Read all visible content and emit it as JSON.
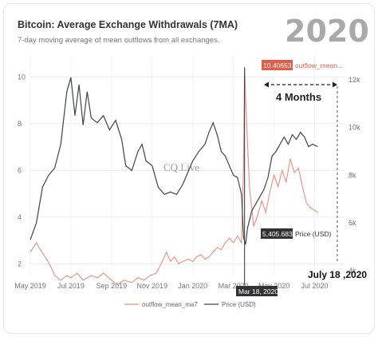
{
  "header": {
    "title": "Bitcoin: Average Exchange Withdrawals (7MA)",
    "subtitle": "7-day moving average of mean outflows from all exchanges.",
    "year_overlay": "2020"
  },
  "annotations": {
    "duration_label": "4 Months",
    "end_date_label": "July 18 ,2020",
    "watermark": "CQ.Live",
    "peak_value_label": "10.40653",
    "peak_series_label": "outflow_mean...",
    "price_value_label": "5,405.683",
    "price_series_label": "Price (USD)",
    "date_badge": "Mar 18, 2020"
  },
  "colors": {
    "outflow": "#ef8d7c",
    "price": "#3f4449",
    "peak_badge": "#e25c48",
    "badge_dark": "#2f3336"
  },
  "chart_data": {
    "type": "line",
    "title": "Bitcoin: Average Exchange Withdrawals (7MA)",
    "subtitle": "7-day moving average of mean outflows from all exchanges.",
    "x_ticks": [
      "May 2019",
      "Jul 2019",
      "Sep 2019",
      "Nov 2019",
      "Jan 2020",
      "Mar 2020",
      "May 2020",
      "Jul 2020"
    ],
    "y_left_ticks": [
      2,
      4,
      6,
      8,
      10
    ],
    "y_left_range": [
      1.5,
      10.9
    ],
    "y_right_ticks": [
      "4k",
      "6k",
      "8k",
      "10k",
      "12k"
    ],
    "y_right_range": [
      3800,
      13000
    ],
    "x_range_months": [
      0,
      15
    ],
    "legend": [
      "outflow_mean_ma7",
      "Price (USD)"
    ],
    "legend_position": "bottom",
    "grid": true,
    "series": [
      {
        "name": "outflow_mean_ma7",
        "axis": "left",
        "points": [
          [
            0.0,
            2.5
          ],
          [
            0.3,
            2.9
          ],
          [
            0.5,
            2.6
          ],
          [
            0.8,
            2.2
          ],
          [
            1.0,
            1.9
          ],
          [
            1.2,
            1.5
          ],
          [
            1.5,
            1.3
          ],
          [
            1.8,
            1.5
          ],
          [
            2.0,
            1.4
          ],
          [
            2.3,
            1.6
          ],
          [
            2.6,
            1.3
          ],
          [
            3.0,
            1.5
          ],
          [
            3.3,
            1.4
          ],
          [
            3.6,
            1.6
          ],
          [
            4.0,
            1.3
          ],
          [
            4.3,
            1.1
          ],
          [
            4.6,
            1.3
          ],
          [
            5.0,
            1.2
          ],
          [
            5.3,
            1.4
          ],
          [
            5.6,
            1.3
          ],
          [
            5.9,
            1.5
          ],
          [
            6.2,
            1.6
          ],
          [
            6.5,
            2.1
          ],
          [
            6.7,
            2.5
          ],
          [
            6.9,
            2.1
          ],
          [
            7.1,
            2.3
          ],
          [
            7.3,
            2.0
          ],
          [
            7.5,
            2.1
          ],
          [
            7.8,
            2.2
          ],
          [
            8.0,
            2.1
          ],
          [
            8.2,
            2.3
          ],
          [
            8.4,
            2.4
          ],
          [
            8.6,
            2.2
          ],
          [
            8.8,
            2.3
          ],
          [
            9.0,
            2.5
          ],
          [
            9.2,
            2.7
          ],
          [
            9.4,
            2.6
          ],
          [
            9.6,
            2.9
          ],
          [
            9.8,
            3.1
          ],
          [
            10.0,
            2.9
          ],
          [
            10.2,
            3.2
          ],
          [
            10.4,
            2.9
          ],
          [
            10.5,
            6.2
          ],
          [
            10.55,
            10.4
          ],
          [
            10.6,
            9.2
          ],
          [
            10.7,
            7.1
          ],
          [
            10.8,
            5.2
          ],
          [
            10.9,
            4.4
          ],
          [
            11.0,
            3.6
          ],
          [
            11.2,
            4.1
          ],
          [
            11.4,
            4.7
          ],
          [
            11.6,
            4.2
          ],
          [
            11.8,
            5.1
          ],
          [
            12.0,
            5.8
          ],
          [
            12.2,
            5.3
          ],
          [
            12.4,
            6.0
          ],
          [
            12.6,
            5.5
          ],
          [
            12.8,
            6.5
          ],
          [
            13.0,
            5.9
          ],
          [
            13.2,
            6.1
          ],
          [
            13.4,
            5.3
          ],
          [
            13.6,
            4.6
          ],
          [
            13.8,
            4.4
          ],
          [
            14.0,
            4.3
          ],
          [
            14.15,
            4.2
          ]
        ]
      },
      {
        "name": "Price (USD)",
        "axis": "right",
        "points": [
          [
            0.0,
            5300
          ],
          [
            0.3,
            6000
          ],
          [
            0.6,
            7500
          ],
          [
            0.9,
            8000
          ],
          [
            1.2,
            8300
          ],
          [
            1.5,
            9300
          ],
          [
            1.8,
            11500
          ],
          [
            2.0,
            12100
          ],
          [
            2.2,
            10500
          ],
          [
            2.4,
            11800
          ],
          [
            2.6,
            10100
          ],
          [
            2.8,
            11500
          ],
          [
            3.0,
            10400
          ],
          [
            3.3,
            10200
          ],
          [
            3.6,
            10500
          ],
          [
            3.9,
            9900
          ],
          [
            4.2,
            10300
          ],
          [
            4.5,
            9500
          ],
          [
            4.7,
            8400
          ],
          [
            5.0,
            8200
          ],
          [
            5.3,
            9000
          ],
          [
            5.5,
            9300
          ],
          [
            5.7,
            8600
          ],
          [
            6.0,
            8400
          ],
          [
            6.3,
            7500
          ],
          [
            6.6,
            7200
          ],
          [
            6.9,
            7300
          ],
          [
            7.2,
            7200
          ],
          [
            7.5,
            7600
          ],
          [
            7.8,
            8200
          ],
          [
            8.0,
            8600
          ],
          [
            8.3,
            9000
          ],
          [
            8.6,
            9300
          ],
          [
            8.8,
            9800
          ],
          [
            9.0,
            10200
          ],
          [
            9.2,
            9700
          ],
          [
            9.4,
            9000
          ],
          [
            9.6,
            8800
          ],
          [
            9.8,
            8400
          ],
          [
            10.0,
            8000
          ],
          [
            10.2,
            7900
          ],
          [
            10.4,
            7200
          ],
          [
            10.5,
            5400
          ],
          [
            10.6,
            5100
          ],
          [
            10.7,
            5800
          ],
          [
            10.9,
            6500
          ],
          [
            11.1,
            6800
          ],
          [
            11.3,
            7100
          ],
          [
            11.5,
            7400
          ],
          [
            11.7,
            7900
          ],
          [
            11.9,
            8800
          ],
          [
            12.1,
            9000
          ],
          [
            12.3,
            9300
          ],
          [
            12.5,
            9600
          ],
          [
            12.7,
            9300
          ],
          [
            12.9,
            9700
          ],
          [
            13.1,
            9500
          ],
          [
            13.3,
            9800
          ],
          [
            13.5,
            9600
          ],
          [
            13.7,
            9200
          ],
          [
            13.9,
            9300
          ],
          [
            14.15,
            9200
          ]
        ]
      }
    ],
    "markers": [
      {
        "x": 10.55,
        "series": "outflow_mean_ma7",
        "value": 10.40653
      },
      {
        "x": 10.55,
        "series": "Price (USD)",
        "value": 5405.683
      }
    ]
  }
}
